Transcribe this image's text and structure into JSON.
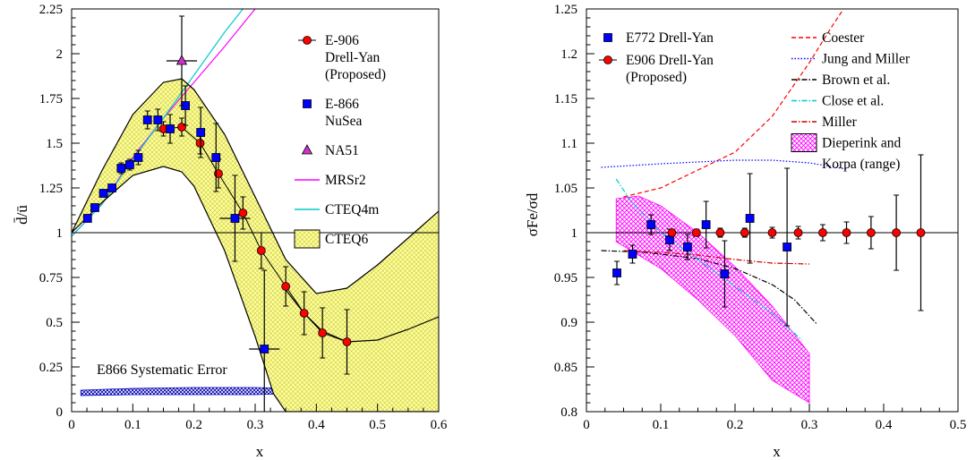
{
  "chart_data": [
    {
      "type": "scatter",
      "xlabel": "x",
      "ylabel": "d̄/ū",
      "xlim": [
        0,
        0.6
      ],
      "ylim": [
        0,
        2.25
      ],
      "xticks": [
        0,
        0.1,
        0.2,
        0.3,
        0.4,
        0.5,
        0.6
      ],
      "xtick_labels": [
        "0",
        "0.1",
        "0.2",
        "0.3",
        "0.4",
        "0.5",
        "0.6"
      ],
      "yticks": [
        0,
        0.25,
        0.5,
        0.75,
        1,
        1.25,
        1.5,
        1.75,
        2,
        2.25
      ],
      "ytick_labels": [
        "0",
        "0.25",
        "0.5",
        "0.75",
        "1",
        "1.25",
        "1.5",
        "1.75",
        "2",
        "2.25"
      ],
      "reference_line": 1,
      "annotation": "E866 Systematic Error",
      "legend_position": "right",
      "legend": [
        {
          "label": [
            "E-906",
            "Drell-Yan",
            "(Proposed)"
          ],
          "marker": "circle",
          "color": "#ff0000"
        },
        {
          "label": [
            "E-866",
            "NuSea"
          ],
          "marker": "square",
          "color": "#0000ff"
        },
        {
          "label": [
            "NA51"
          ],
          "marker": "triangle",
          "color": "#cc33cc"
        },
        {
          "label": [
            "MRSr2"
          ],
          "marker": "line",
          "color": "#ff00ff"
        },
        {
          "label": [
            "CTEQ4m"
          ],
          "marker": "line",
          "color": "#00cccc"
        },
        {
          "label": [
            "CTEQ6"
          ],
          "marker": "band",
          "color": "#ffff99"
        }
      ],
      "series": [
        {
          "name": "E-906 Drell-Yan (Proposed)",
          "marker": "circle",
          "color": "#ff0000",
          "x": [
            0.15,
            0.18,
            0.21,
            0.24,
            0.28,
            0.31,
            0.35,
            0.38,
            0.41,
            0.45
          ],
          "y": [
            1.58,
            1.59,
            1.5,
            1.33,
            1.11,
            0.9,
            0.7,
            0.55,
            0.44,
            0.39
          ],
          "err": [
            0.04,
            0.05,
            0.06,
            0.08,
            0.09,
            0.1,
            0.11,
            0.12,
            0.14,
            0.18
          ]
        },
        {
          "name": "E-866 NuSea",
          "marker": "square",
          "color": "#0000ff",
          "x": [
            0.026,
            0.038,
            0.052,
            0.066,
            0.081,
            0.095,
            0.109,
            0.124,
            0.141,
            0.161,
            0.186,
            0.211,
            0.236,
            0.267,
            0.315
          ],
          "y": [
            1.08,
            1.14,
            1.22,
            1.25,
            1.36,
            1.38,
            1.42,
            1.63,
            1.63,
            1.58,
            1.71,
            1.56,
            1.42,
            1.08,
            0.35
          ],
          "err": [
            0.02,
            0.02,
            0.02,
            0.02,
            0.03,
            0.03,
            0.04,
            0.05,
            0.06,
            0.08,
            0.11,
            0.14,
            0.19,
            0.24,
            0.44
          ],
          "xerr": [
            0,
            0,
            0,
            0,
            0,
            0,
            0,
            0,
            0,
            0,
            0,
            0,
            0,
            0.025,
            0.025
          ]
        },
        {
          "name": "NA51",
          "marker": "triangle",
          "color": "#cc33cc",
          "x": [
            0.18
          ],
          "y": [
            1.96
          ],
          "err": [
            0.25
          ],
          "xerr": [
            0.025
          ]
        },
        {
          "name": "MRSr2",
          "type": "line",
          "color": "#ff00ff",
          "x": [
            0.0,
            0.05,
            0.1,
            0.15,
            0.2,
            0.25,
            0.3
          ],
          "y": [
            0.98,
            1.16,
            1.42,
            1.64,
            1.84,
            2.04,
            2.25
          ]
        },
        {
          "name": "CTEQ4m",
          "type": "line",
          "color": "#00cccc",
          "x": [
            0.0,
            0.05,
            0.1,
            0.15,
            0.2,
            0.25,
            0.28
          ],
          "y": [
            0.98,
            1.16,
            1.41,
            1.64,
            1.88,
            2.12,
            2.25
          ]
        },
        {
          "name": "CTEQ6 upper",
          "type": "line",
          "color": "#000000",
          "x": [
            0.0,
            0.05,
            0.1,
            0.15,
            0.18,
            0.2,
            0.25,
            0.3,
            0.35,
            0.4,
            0.45,
            0.5,
            0.55,
            0.6
          ],
          "y": [
            1.0,
            1.35,
            1.66,
            1.84,
            1.86,
            1.8,
            1.55,
            1.2,
            0.85,
            0.66,
            0.69,
            0.82,
            0.97,
            1.12
          ]
        },
        {
          "name": "CTEQ6 lower",
          "type": "line",
          "color": "#000000",
          "x": [
            0.0,
            0.05,
            0.1,
            0.15,
            0.18,
            0.2,
            0.25,
            0.3,
            0.33,
            0.35,
            0.4,
            0.45,
            0.5,
            0.55,
            0.6
          ],
          "y": [
            1.0,
            1.17,
            1.32,
            1.37,
            1.34,
            1.26,
            0.9,
            0.42,
            0.1,
            0.0,
            0.0,
            0.0,
            0.0,
            0.0,
            0.0
          ]
        },
        {
          "name": "CTEQ6 central",
          "type": "line",
          "color": "#000000",
          "x": [
            0.35,
            0.38,
            0.41,
            0.45,
            0.5,
            0.55,
            0.6
          ],
          "y": [
            0.68,
            0.55,
            0.45,
            0.39,
            0.4,
            0.46,
            0.53
          ]
        },
        {
          "name": "E866 Systematic Error",
          "type": "area",
          "color": "#0000cc",
          "x": [
            0.015,
            0.1,
            0.2,
            0.3,
            0.35
          ],
          "y_low": [
            0.09,
            0.095,
            0.095,
            0.095,
            0.1
          ],
          "y_high": [
            0.12,
            0.13,
            0.135,
            0.135,
            0.13
          ]
        }
      ]
    },
    {
      "type": "scatter",
      "xlabel": "x",
      "ylabel": "σFe/σd",
      "xlim": [
        0,
        0.5
      ],
      "ylim": [
        0.8,
        1.25
      ],
      "xticks": [
        0,
        0.1,
        0.2,
        0.3,
        0.4,
        0.5
      ],
      "xtick_labels": [
        "0",
        "0.1",
        "0.2",
        "0.3",
        "0.4",
        "0.5"
      ],
      "yticks": [
        0.8,
        0.85,
        0.9,
        0.95,
        1,
        1.05,
        1.1,
        1.15,
        1.2,
        1.25
      ],
      "ytick_labels": [
        "0.8",
        "0.85",
        "0.9",
        "0.95",
        "1",
        "1.05",
        "1.1",
        "1.15",
        "1.2",
        "1.25"
      ],
      "reference_line": 1,
      "legend_position": "top",
      "legend_left": [
        {
          "label": [
            "E772 Drell-Yan"
          ],
          "marker": "square",
          "color": "#0000ff"
        },
        {
          "label": [
            "E906 Drell-Yan",
            "(Proposed)"
          ],
          "marker": "circle",
          "color": "#ff0000"
        }
      ],
      "legend_right": [
        {
          "label": [
            "Coester"
          ],
          "marker": "dashed",
          "color": "#ff0000"
        },
        {
          "label": [
            "Jung and Miller"
          ],
          "marker": "dotted",
          "color": "#0000ff"
        },
        {
          "label": [
            "Brown et al."
          ],
          "marker": "dashdot",
          "color": "#000000"
        },
        {
          "label": [
            "Close et al."
          ],
          "marker": "dashdot",
          "color": "#00cccc"
        },
        {
          "label": [
            "Miller"
          ],
          "marker": "dashdot",
          "color": "#cc0000"
        },
        {
          "label": [
            "Dieperink and",
            "Korpa (range)"
          ],
          "marker": "band",
          "color": "#ff00ff"
        }
      ],
      "series": [
        {
          "name": "E772 Drell-Yan",
          "marker": "square",
          "color": "#0000ff",
          "x": [
            0.041,
            0.062,
            0.087,
            0.112,
            0.136,
            0.161,
            0.186,
            0.22,
            0.27
          ],
          "y": [
            0.955,
            0.976,
            1.009,
            0.992,
            0.984,
            1.009,
            0.954,
            1.016,
            0.984
          ],
          "err": [
            0.013,
            0.01,
            0.011,
            0.012,
            0.014,
            0.026,
            0.037,
            0.05,
            0.088
          ]
        },
        {
          "name": "E906 Drell-Yan (Proposed)",
          "marker": "circle",
          "color": "#ff0000",
          "x": [
            0.115,
            0.148,
            0.18,
            0.213,
            0.25,
            0.285,
            0.318,
            0.35,
            0.383,
            0.417,
            0.45
          ],
          "y": [
            1,
            1,
            1,
            1,
            1,
            1,
            1,
            1,
            1,
            1,
            1
          ],
          "err": [
            0.004,
            0.004,
            0.005,
            0.005,
            0.006,
            0.007,
            0.009,
            0.012,
            0.018,
            0.042,
            0.087
          ]
        },
        {
          "name": "Coester",
          "type": "line",
          "color": "#ff0000",
          "dash": "dashed",
          "x": [
            0.05,
            0.1,
            0.15,
            0.2,
            0.25,
            0.3,
            0.33,
            0.35
          ],
          "y": [
            1.04,
            1.05,
            1.07,
            1.09,
            1.13,
            1.19,
            1.23,
            1.255
          ]
        },
        {
          "name": "Jung and Miller",
          "type": "line",
          "color": "#0000ff",
          "dash": "dotted",
          "x": [
            0.02,
            0.1,
            0.2,
            0.25,
            0.3,
            0.35
          ],
          "y": [
            1.073,
            1.077,
            1.081,
            1.081,
            1.078,
            1.071
          ]
        },
        {
          "name": "Brown et al.",
          "type": "line",
          "color": "#000000",
          "dash": "dashdot",
          "x": [
            0.02,
            0.08,
            0.15,
            0.2,
            0.25,
            0.28,
            0.31
          ],
          "y": [
            0.98,
            0.978,
            0.971,
            0.96,
            0.942,
            0.925,
            0.898
          ]
        },
        {
          "name": "Close et al.",
          "type": "line",
          "color": "#00cccc",
          "dash": "dashdot",
          "x": [
            0.04,
            0.06,
            0.1,
            0.15,
            0.2,
            0.25,
            0.29
          ],
          "y": [
            1.06,
            1.035,
            1.0,
            0.97,
            0.94,
            0.91,
            0.88
          ]
        },
        {
          "name": "Miller",
          "type": "line",
          "color": "#cc0000",
          "dash": "dashdot",
          "x": [
            0.05,
            0.1,
            0.15,
            0.2,
            0.25,
            0.3
          ],
          "y": [
            0.98,
            0.978,
            0.975,
            0.97,
            0.966,
            0.965
          ]
        },
        {
          "name": "Dieperink and Korpa (range)",
          "type": "area",
          "color": "#ff00ff",
          "x": [
            0.04,
            0.07,
            0.1,
            0.15,
            0.2,
            0.25,
            0.3
          ],
          "y_high": [
            1.038,
            1.041,
            1.03,
            1.0,
            0.962,
            0.918,
            0.865
          ],
          "y_low": [
            0.99,
            0.975,
            0.96,
            0.925,
            0.885,
            0.835,
            0.81
          ]
        }
      ]
    }
  ]
}
